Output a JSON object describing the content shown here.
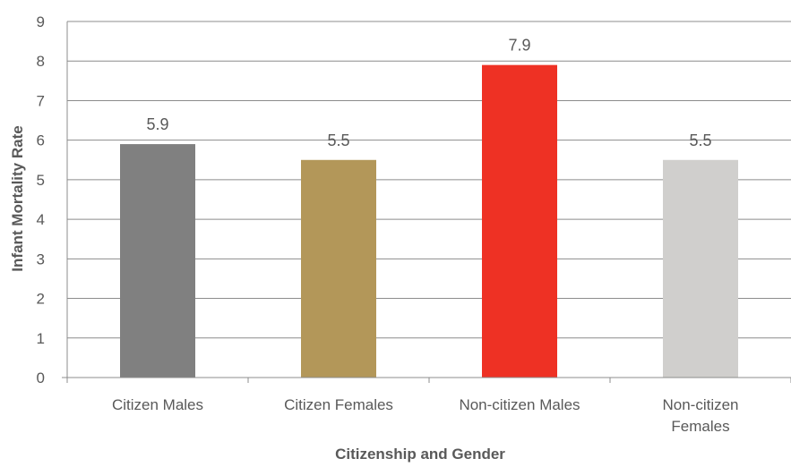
{
  "chart_data": {
    "type": "bar",
    "categories": [
      [
        "Citizen Males"
      ],
      [
        "Citizen Females"
      ],
      [
        "Non-citizen Males"
      ],
      [
        "Non-citizen",
        "Females"
      ]
    ],
    "values": [
      5.9,
      5.5,
      7.9,
      5.5
    ],
    "value_labels": [
      "5.9",
      "5.5",
      "7.9",
      "5.5"
    ],
    "bar_colors": [
      "#808080",
      "#b39759",
      "#ee3124",
      "#d0cfcd"
    ],
    "xlabel": "Citizenship and Gender",
    "ylabel": "Infant Mortality Rate",
    "ylim": [
      0,
      9
    ],
    "yticks": [
      0,
      1,
      2,
      3,
      4,
      5,
      6,
      7,
      8,
      9
    ],
    "grid": true,
    "legend": false
  }
}
